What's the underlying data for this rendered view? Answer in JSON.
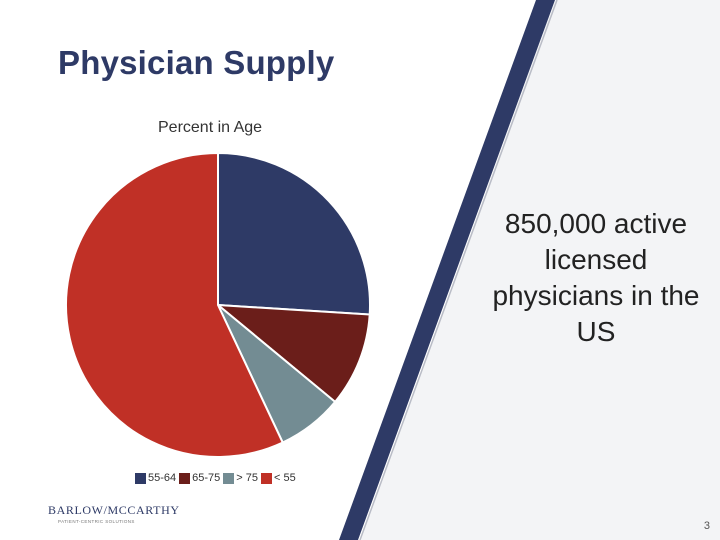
{
  "slide": {
    "title": "Physician Supply",
    "callout": "850,000 active licensed physicians in the US",
    "page_number": "3"
  },
  "logo": {
    "name": "BARLOW/MCCARTHY",
    "tagline": "PATIENT-CENTRIC SOLUTIONS"
  },
  "colors": {
    "navy": "#2e3a66",
    "dark_red": "#6b1e1a",
    "gray_teal": "#738c93",
    "red": "#c03026",
    "diagonal_band": "#2e3a66",
    "diagonal_line": "#b9bcc6"
  },
  "chart_data": {
    "type": "pie",
    "title": "Percent in Age",
    "categories": [
      "55-64",
      "65-75",
      "> 75",
      "< 55"
    ],
    "values": [
      26,
      10,
      7,
      57
    ],
    "unit": "%",
    "colors": [
      "#2e3a66",
      "#6b1e1a",
      "#738c93",
      "#c03026"
    ],
    "legend_position": "bottom",
    "start_angle": "12 o'clock",
    "direction": "clockwise"
  }
}
